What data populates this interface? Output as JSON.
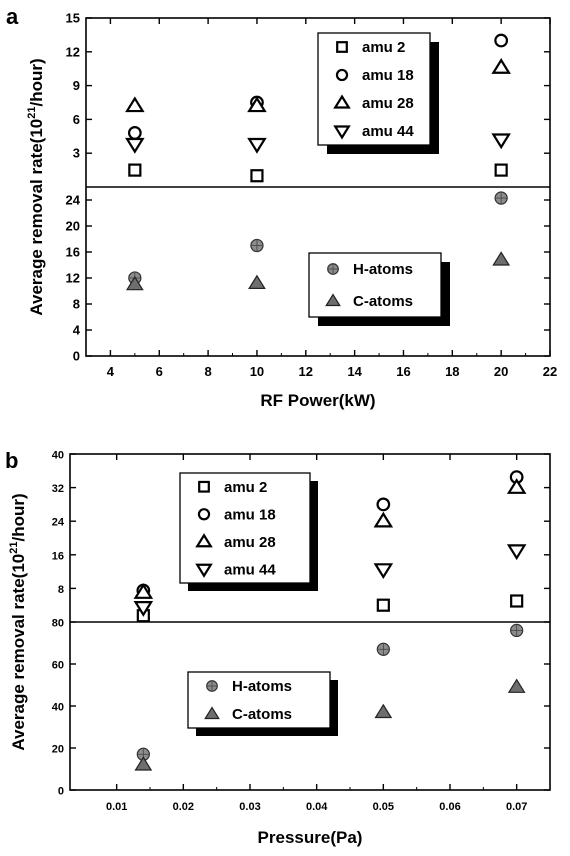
{
  "chart_data": [
    {
      "panel": "a",
      "type": "scatter",
      "xlabel": "RF Power(kW)",
      "ylabel": "Average removal rate(10^21/hour)",
      "ylabel_main": "Average removal rate(10",
      "ylabel_sup": "21",
      "ylabel_end": "/hour)",
      "xlim": [
        3,
        22
      ],
      "x_ticks": [
        "4",
        "6",
        "8",
        "10",
        "12",
        "14",
        "16",
        "18",
        "20",
        "22"
      ],
      "grid": false,
      "upper": {
        "ylim": [
          0,
          15
        ],
        "y_ticks": [
          "3",
          "6",
          "9",
          "12",
          "15"
        ],
        "legend_position": "top-right",
        "series": [
          {
            "name": "amu 2",
            "marker": "square",
            "x": [
              5,
              10,
              20
            ],
            "y": [
              1.5,
              1.0,
              1.5
            ]
          },
          {
            "name": "amu 18",
            "marker": "circle",
            "x": [
              5,
              10,
              20
            ],
            "y": [
              4.8,
              7.5,
              13.0
            ]
          },
          {
            "name": "amu 28",
            "marker": "triangle-up",
            "x": [
              5,
              10,
              20
            ],
            "y": [
              7.2,
              7.2,
              10.6
            ]
          },
          {
            "name": "amu 44",
            "marker": "triangle-down",
            "x": [
              5,
              10,
              20
            ],
            "y": [
              3.8,
              3.8,
              4.2
            ]
          }
        ]
      },
      "lower": {
        "ylim": [
          0,
          26
        ],
        "y_ticks": [
          "0",
          "4",
          "8",
          "12",
          "16",
          "20",
          "24"
        ],
        "legend_position": "center-right",
        "series": [
          {
            "name": "H-atoms",
            "marker": "circle-filled",
            "x": [
              5,
              10,
              20
            ],
            "y": [
              12.0,
              17.0,
              24.3
            ]
          },
          {
            "name": "C-atoms",
            "marker": "triangle-filled",
            "x": [
              5,
              10,
              20
            ],
            "y": [
              11.0,
              11.2,
              14.8
            ]
          }
        ]
      }
    },
    {
      "panel": "b",
      "type": "scatter",
      "xlabel": "Pressure(Pa)",
      "ylabel": "Average removal rate(10^21/hour)",
      "ylabel_main": "Average removal rate(10",
      "ylabel_sup": "21",
      "ylabel_end": "/hour)",
      "xlim": [
        0.003,
        0.075
      ],
      "x_ticks": [
        "0.01",
        "0.02",
        "0.03",
        "0.04",
        "0.05",
        "0.06",
        "0.07"
      ],
      "grid": false,
      "upper": {
        "ylim": [
          0,
          40
        ],
        "y_ticks": [
          "8",
          "16",
          "24",
          "32",
          "40"
        ],
        "legend_position": "top-left",
        "series": [
          {
            "name": "amu 2",
            "marker": "square",
            "x": [
              0.014,
              0.05,
              0.07
            ],
            "y": [
              1.5,
              4.0,
              5.0
            ]
          },
          {
            "name": "amu 18",
            "marker": "circle",
            "x": [
              0.014,
              0.05,
              0.07
            ],
            "y": [
              7.5,
              28.0,
              34.5
            ]
          },
          {
            "name": "amu 28",
            "marker": "triangle-up",
            "x": [
              0.014,
              0.05,
              0.07
            ],
            "y": [
              7.0,
              24.0,
              32.0
            ]
          },
          {
            "name": "amu 44",
            "marker": "triangle-down",
            "x": [
              0.014,
              0.05,
              0.07
            ],
            "y": [
              3.5,
              12.5,
              17.0
            ]
          }
        ]
      },
      "lower": {
        "ylim": [
          0,
          80
        ],
        "y_ticks": [
          "0",
          "20",
          "40",
          "60",
          "80"
        ],
        "legend_position": "top-center",
        "series": [
          {
            "name": "H-atoms",
            "marker": "circle-filled",
            "x": [
              0.014,
              0.05,
              0.07
            ],
            "y": [
              17.0,
              67.0,
              76.0
            ]
          },
          {
            "name": "C-atoms",
            "marker": "triangle-filled",
            "x": [
              0.014,
              0.05,
              0.07
            ],
            "y": [
              12.0,
              37.0,
              49.0
            ]
          }
        ]
      }
    }
  ]
}
